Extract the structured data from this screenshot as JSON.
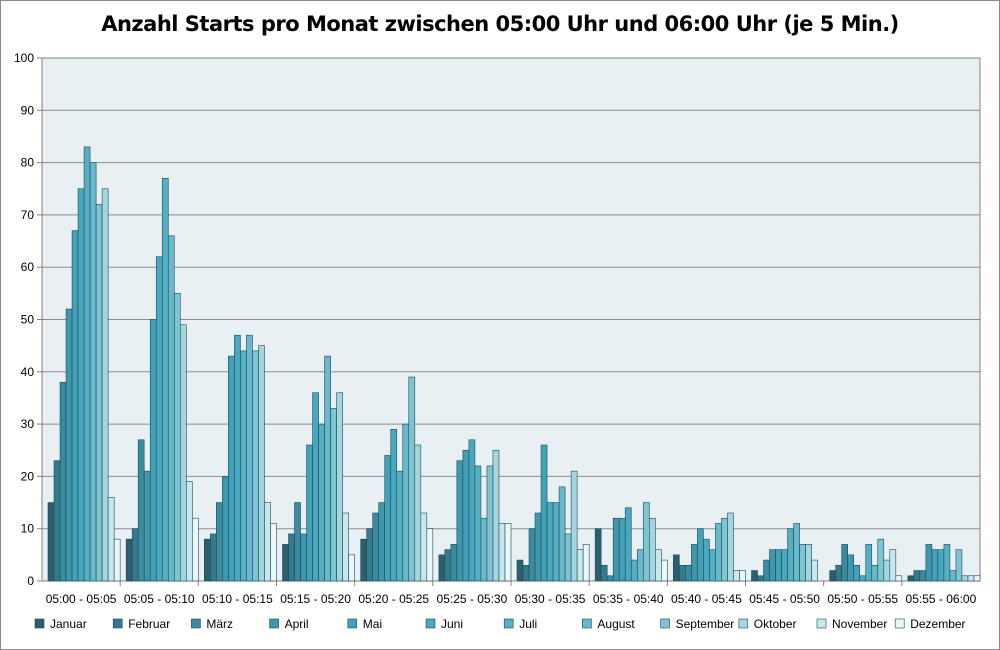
{
  "chart_data": {
    "type": "bar",
    "title": "Anzahl Starts pro Monat zwischen 05:00 Uhr und 06:00 Uhr (je 5 Min.)",
    "xlabel": "",
    "ylabel": "",
    "ylim": [
      0,
      100
    ],
    "yticks": [
      "0",
      "10",
      "20",
      "30",
      "40",
      "50",
      "60",
      "70",
      "80",
      "90",
      "100"
    ],
    "grid": true,
    "legend_position": "bottom",
    "categories": [
      "05:00 - 05:05",
      "05:05 - 05:10",
      "05:10 - 05:15",
      "05:15 - 05:20",
      "05:20 - 05:25",
      "05:25 - 05:30",
      "05:30 - 05:35",
      "05:35 - 05:40",
      "05:40 - 05:45",
      "05:45 - 05:50",
      "05:50 - 05:55",
      "05:55 - 06:00"
    ],
    "series": [
      {
        "name": "Januar",
        "color": "#2c5f6e",
        "values": [
          15,
          8,
          8,
          7,
          8,
          5,
          4,
          10,
          5,
          2,
          2,
          1
        ]
      },
      {
        "name": "Februar",
        "color": "#357a8c",
        "values": [
          23,
          10,
          9,
          9,
          10,
          6,
          3,
          3,
          3,
          1,
          3,
          2
        ]
      },
      {
        "name": "März",
        "color": "#3b8b9f",
        "values": [
          38,
          27,
          15,
          15,
          13,
          7,
          10,
          1,
          3,
          4,
          7,
          2
        ]
      },
      {
        "name": "April",
        "color": "#3f97ad",
        "values": [
          52,
          21,
          20,
          9,
          15,
          23,
          13,
          12,
          7,
          6,
          5,
          7
        ]
      },
      {
        "name": "Mai",
        "color": "#42a1b8",
        "values": [
          67,
          50,
          43,
          26,
          24,
          25,
          26,
          12,
          10,
          6,
          3,
          6
        ]
      },
      {
        "name": "Juni",
        "color": "#48a8be",
        "values": [
          75,
          62,
          47,
          36,
          29,
          27,
          15,
          14,
          8,
          6,
          1,
          6
        ]
      },
      {
        "name": "Juli",
        "color": "#55b0c4",
        "values": [
          83,
          77,
          44,
          30,
          21,
          22,
          15,
          4,
          6,
          10,
          7,
          7
        ]
      },
      {
        "name": "August",
        "color": "#67b9cb",
        "values": [
          80,
          66,
          47,
          43,
          30,
          12,
          18,
          6,
          11,
          11,
          3,
          2
        ]
      },
      {
        "name": "September",
        "color": "#7fc4d3",
        "values": [
          72,
          55,
          44,
          33,
          39,
          22,
          9,
          15,
          12,
          7,
          8,
          6
        ]
      },
      {
        "name": "Oktober",
        "color": "#a4d6e0",
        "values": [
          75,
          49,
          45,
          36,
          26,
          25,
          21,
          12,
          13,
          7,
          4,
          1
        ]
      },
      {
        "name": "November",
        "color": "#c9e8ee",
        "values": [
          16,
          19,
          15,
          13,
          13,
          11,
          6,
          6,
          2,
          4,
          6,
          1
        ]
      },
      {
        "name": "Dezember",
        "color": "#eaf6f8",
        "values": [
          8,
          12,
          11,
          5,
          10,
          11,
          7,
          4,
          2,
          0,
          1,
          1
        ]
      }
    ]
  }
}
